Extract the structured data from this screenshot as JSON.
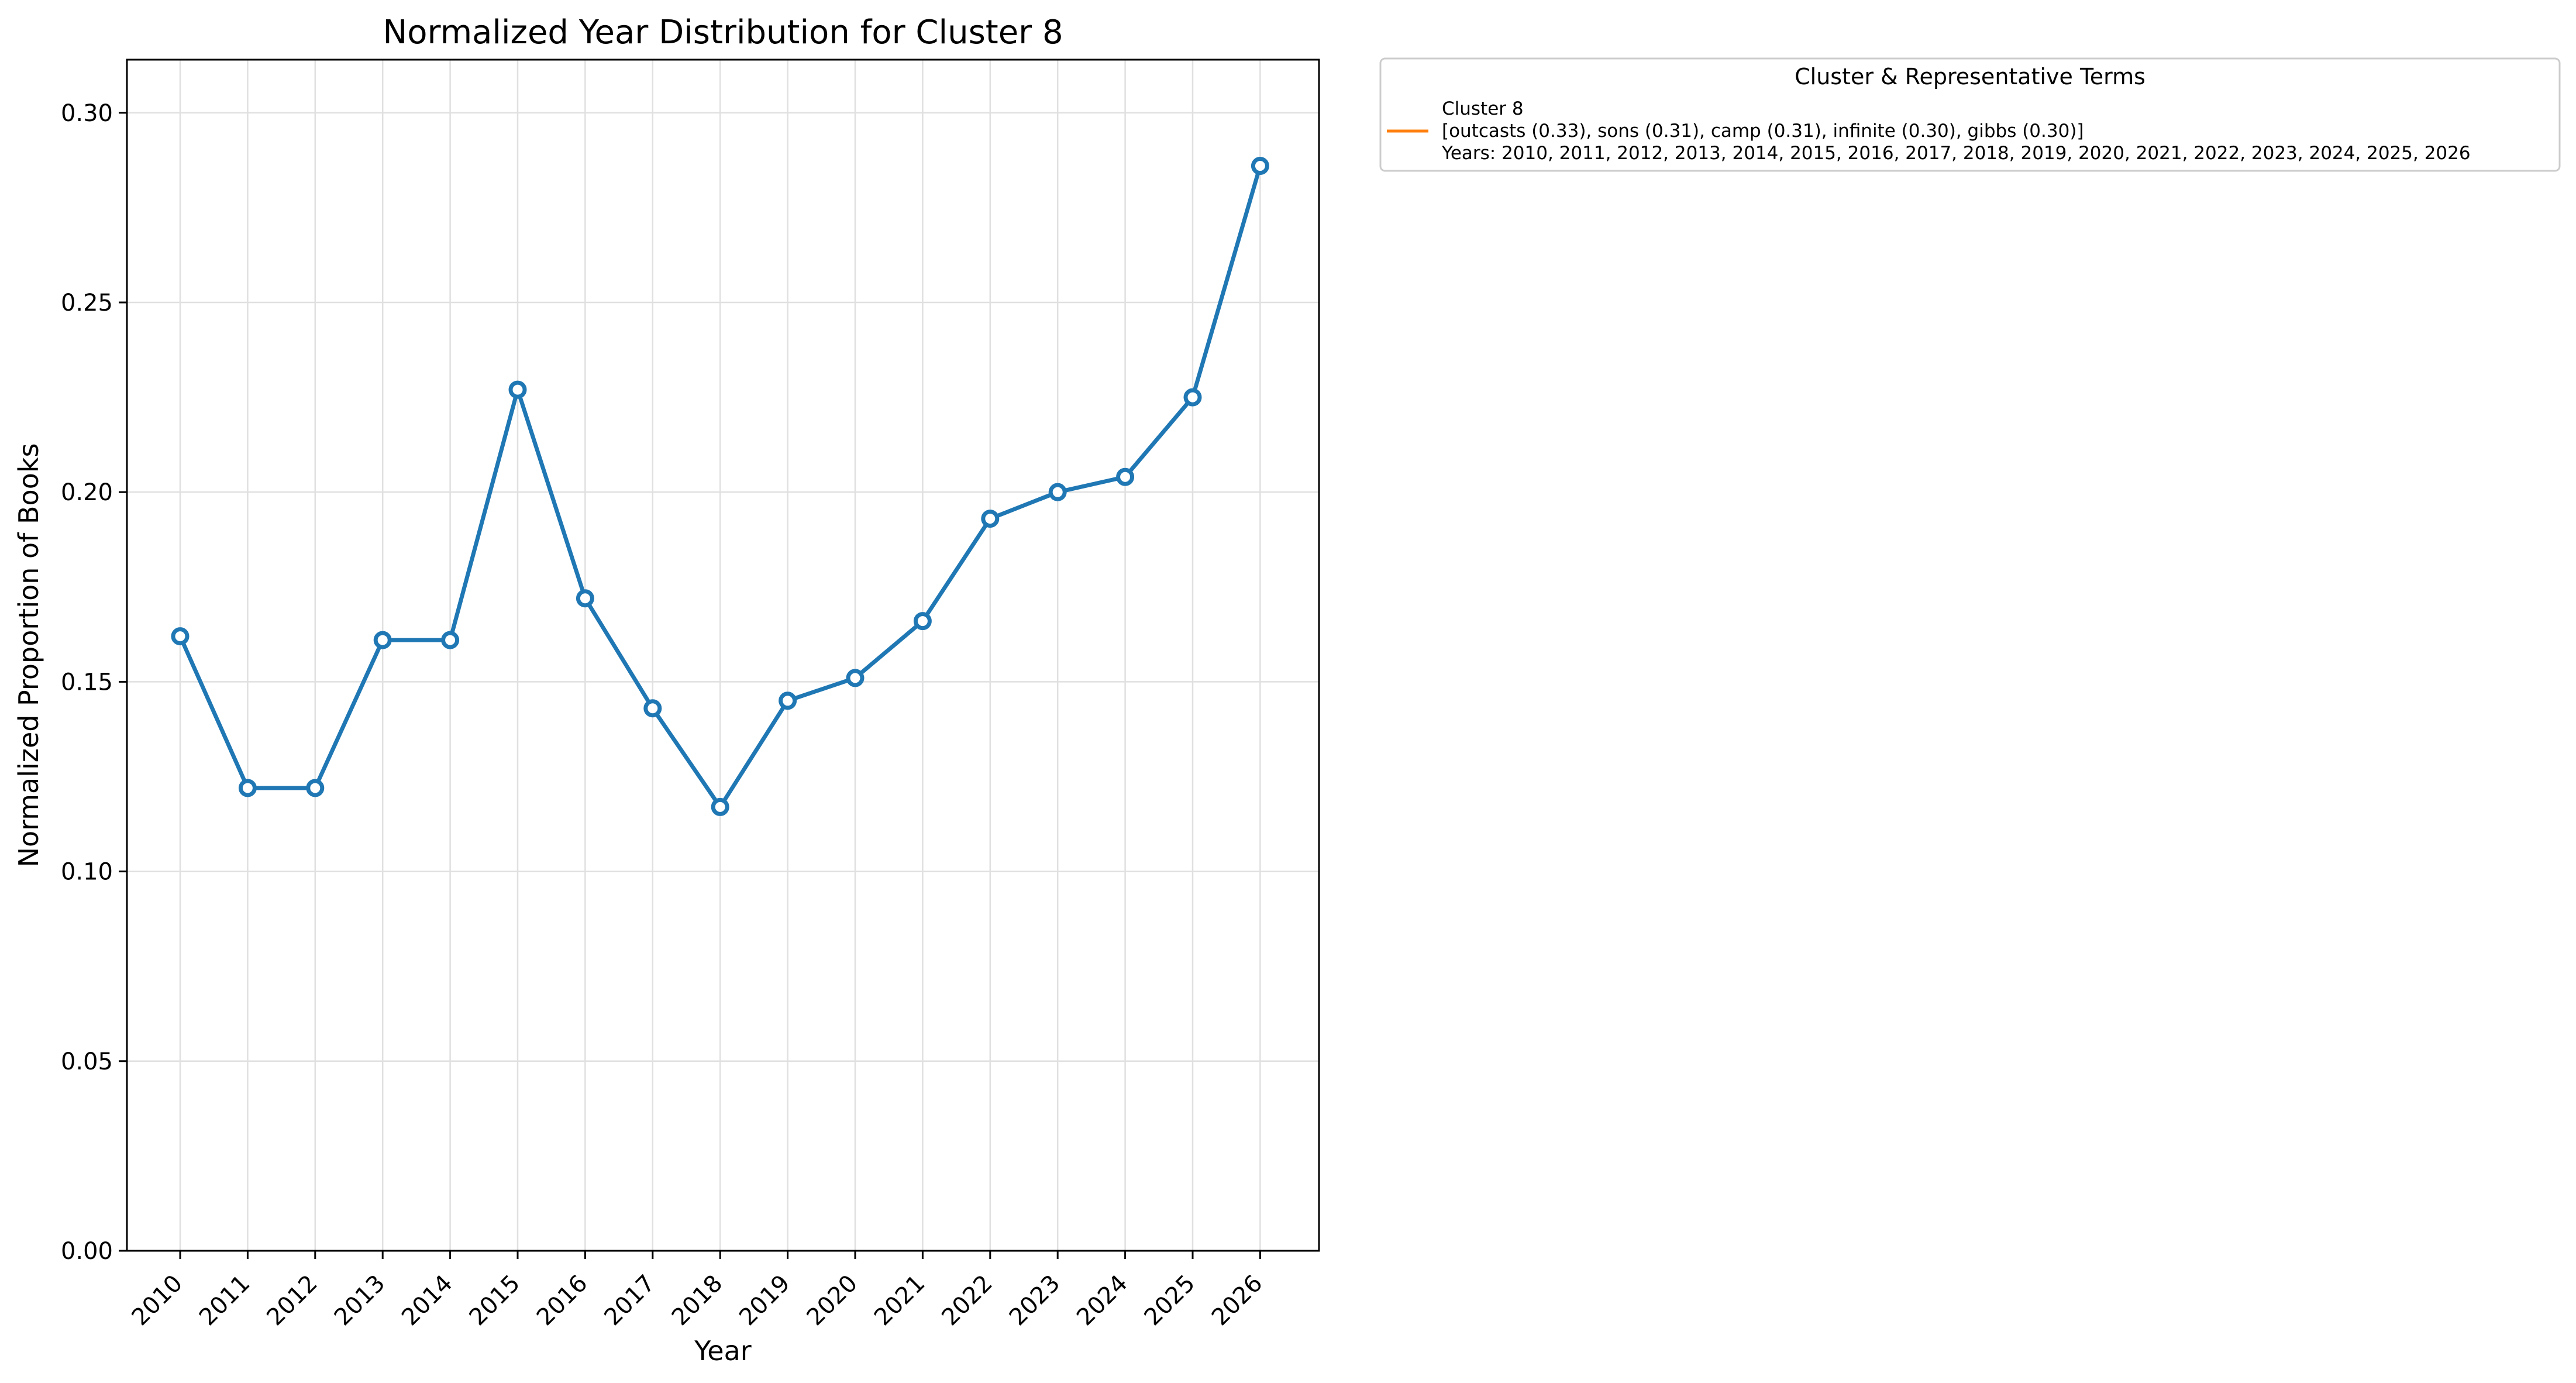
{
  "chart_data": {
    "type": "line",
    "title": "Normalized Year Distribution for Cluster 8",
    "xlabel": "Year",
    "ylabel": "Normalized Proportion of Books",
    "x": [
      "2010",
      "2011",
      "2012",
      "2013",
      "2014",
      "2015",
      "2016",
      "2017",
      "2018",
      "2019",
      "2020",
      "2021",
      "2022",
      "2023",
      "2024",
      "2025",
      "2026"
    ],
    "series": [
      {
        "name": "Cluster 8",
        "values": [
          0.162,
          0.122,
          0.122,
          0.161,
          0.161,
          0.227,
          0.172,
          0.143,
          0.117,
          0.145,
          0.151,
          0.166,
          0.193,
          0.2,
          0.204,
          0.225,
          0.286
        ]
      }
    ],
    "ylim": [
      0.0,
      0.314
    ],
    "yticks": [
      "0.00",
      "0.05",
      "0.10",
      "0.15",
      "0.20",
      "0.25",
      "0.30"
    ],
    "grid": true,
    "legend": {
      "placement": "outside upper right",
      "title": "Cluster & Representative Terms",
      "line1": "Cluster 8",
      "line2": "[outcasts (0.33), sons (0.31), camp (0.31), infinite (0.30), gibbs (0.30)]",
      "line3": "Years: 2010, 2011, 2012, 2013, 2014, 2015, 2016, 2017, 2018, 2019, 2020, 2021, 2022, 2023, 2024, 2025, 2026",
      "swatch_color": "#ff7f0e"
    },
    "colors": {
      "series": "#1f77b4",
      "grid": "#e0e0e0",
      "axis": "#000000"
    }
  }
}
